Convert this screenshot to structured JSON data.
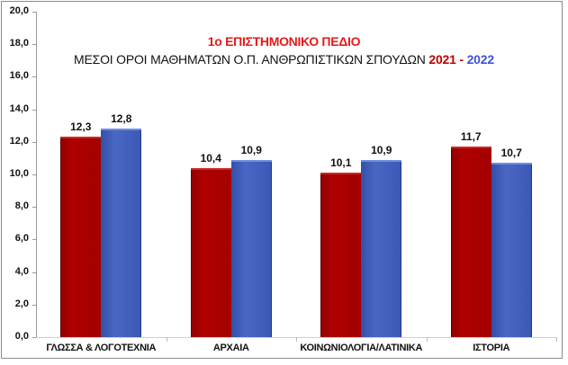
{
  "chart_data": {
    "type": "bar",
    "title": "1ο ΕΠΙΣΤΗΜΟΝΙΚΟ ΠΕΔΙΟ",
    "subtitle": "ΜΕΣΟΙ ΟΡΟΙ ΜΑΘΗΜΑΤΩΝ Ο.Π. ΑΝΘΡΩΠΙΣΤΙΚΩΝ ΣΠΟΥΔΩΝ",
    "subtitle_year1": "2021",
    "subtitle_sep": " - ",
    "subtitle_year2": "2022",
    "categories": [
      "ΓΛΩΣΣΑ & ΛΟΓΟΤΕΧΝΙΑ",
      "ΑΡΧΑΙΑ",
      "ΚΟΙΝΩΝΙΟΛΟΓΙΑ/ΛΑΤΙΝΙΚΑ",
      "ΙΣΤΟΡΙΑ"
    ],
    "series": [
      {
        "name": "2021",
        "color": "#a50000",
        "values": [
          12.3,
          10.4,
          10.1,
          11.7
        ],
        "labels": [
          "12,3",
          "10,4",
          "10,1",
          "11,7"
        ]
      },
      {
        "name": "2022",
        "color": "#4060c0",
        "values": [
          12.8,
          10.9,
          10.9,
          10.7
        ],
        "labels": [
          "12,8",
          "10,9",
          "10,9",
          "10,7"
        ]
      }
    ],
    "xlabel": "",
    "ylabel": "",
    "ylim": [
      0,
      20
    ],
    "yticks": [
      "0,0",
      "2,0",
      "4,0",
      "6,0",
      "8,0",
      "10,0",
      "12,0",
      "14,0",
      "16,0",
      "18,0",
      "20,0"
    ],
    "grid": false,
    "legend": "none (years colored in subtitle)"
  }
}
